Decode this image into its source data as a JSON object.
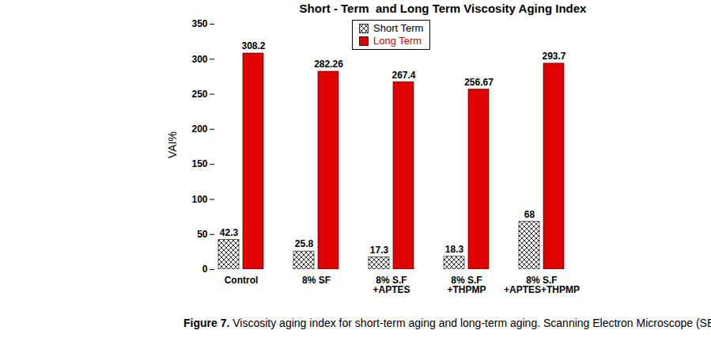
{
  "chart_data": {
    "type": "bar",
    "title": "Short - Term  and Long Term Viscosity Aging Index",
    "y_label": "VAI%",
    "categories": [
      "Control",
      "8% SF",
      "8% S.F\n+APTES",
      "8% S.F\n+THPMP",
      "8% S.F\n+APTES+THPMP"
    ],
    "series": [
      {
        "name": "Short Term",
        "color": "#000000",
        "marker": "crosshatch",
        "values": [
          42.3,
          25.8,
          17.3,
          18.3,
          68
        ]
      },
      {
        "name": "Long Term",
        "color": "#e00000",
        "values": [
          308.2,
          282.26,
          267.4,
          256.67,
          293.7
        ]
      }
    ],
    "ylim": [
      0,
      350
    ],
    "yticks": [
      0,
      50,
      100,
      150,
      200,
      250,
      300,
      350
    ],
    "grid": false,
    "legend": "top",
    "data_labels": true,
    "caption": {
      "label": "Figure 7.",
      "text": "Viscosity aging index for short-term aging and long-term aging. Scanning Electron Microscope (SEM)."
    }
  }
}
